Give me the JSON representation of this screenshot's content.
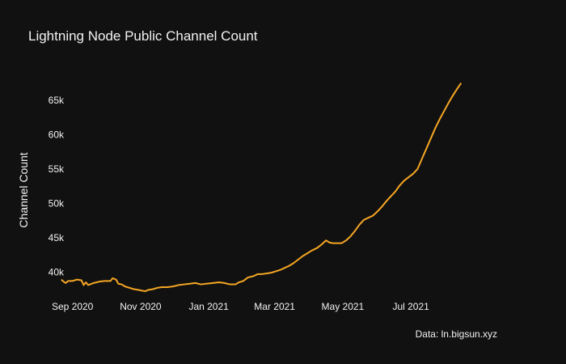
{
  "chart_data": {
    "type": "line",
    "title": "Lightning Node Public Channel Count",
    "xlabel": "",
    "ylabel": "Channel Count",
    "source": "Data: ln.bigsun.xyz",
    "y_ticks": [
      {
        "value": 40000,
        "label": "40k"
      },
      {
        "value": 45000,
        "label": "45k"
      },
      {
        "value": 50000,
        "label": "50k"
      },
      {
        "value": 55000,
        "label": "55k"
      },
      {
        "value": 60000,
        "label": "60k"
      },
      {
        "value": 65000,
        "label": "65k"
      }
    ],
    "x_ticks": [
      {
        "value": "2020-09-01",
        "label": "Sep 2020"
      },
      {
        "value": "2020-11-01",
        "label": "Nov 2020"
      },
      {
        "value": "2021-01-01",
        "label": "Jan 2021"
      },
      {
        "value": "2021-03-01",
        "label": "Mar 2021"
      },
      {
        "value": "2021-05-01",
        "label": "May 2021"
      },
      {
        "value": "2021-07-01",
        "label": "Jul 2021"
      }
    ],
    "xlim": [
      "2020-08-25",
      "2021-09-20"
    ],
    "ylim": [
      36500,
      69000
    ],
    "grid": false,
    "series": [
      {
        "color": "#f5a623",
        "points": [
          [
            "2020-08-22",
            38900
          ],
          [
            "2020-08-24",
            38600
          ],
          [
            "2020-08-26",
            38400
          ],
          [
            "2020-08-28",
            38700
          ],
          [
            "2020-09-01",
            38700
          ],
          [
            "2020-09-05",
            38900
          ],
          [
            "2020-09-09",
            38800
          ],
          [
            "2020-09-11",
            38100
          ],
          [
            "2020-09-13",
            38500
          ],
          [
            "2020-09-15",
            38100
          ],
          [
            "2020-09-20",
            38400
          ],
          [
            "2020-09-25",
            38600
          ],
          [
            "2020-09-30",
            38700
          ],
          [
            "2020-10-05",
            38700
          ],
          [
            "2020-10-07",
            39100
          ],
          [
            "2020-10-10",
            38900
          ],
          [
            "2020-10-12",
            38300
          ],
          [
            "2020-10-15",
            38200
          ],
          [
            "2020-10-18",
            37900
          ],
          [
            "2020-10-22",
            37700
          ],
          [
            "2020-10-26",
            37500
          ],
          [
            "2020-10-30",
            37400
          ],
          [
            "2020-11-02",
            37300
          ],
          [
            "2020-11-05",
            37200
          ],
          [
            "2020-11-08",
            37400
          ],
          [
            "2020-11-12",
            37500
          ],
          [
            "2020-11-16",
            37700
          ],
          [
            "2020-11-20",
            37800
          ],
          [
            "2020-11-25",
            37800
          ],
          [
            "2020-11-30",
            37900
          ],
          [
            "2020-12-05",
            38100
          ],
          [
            "2020-12-10",
            38200
          ],
          [
            "2020-12-15",
            38300
          ],
          [
            "2020-12-20",
            38400
          ],
          [
            "2020-12-25",
            38200
          ],
          [
            "2020-12-30",
            38300
          ],
          [
            "2021-01-05",
            38400
          ],
          [
            "2021-01-10",
            38500
          ],
          [
            "2021-01-15",
            38400
          ],
          [
            "2021-01-20",
            38200
          ],
          [
            "2021-01-25",
            38200
          ],
          [
            "2021-01-28",
            38500
          ],
          [
            "2021-02-01",
            38700
          ],
          [
            "2021-02-05",
            39200
          ],
          [
            "2021-02-10",
            39400
          ],
          [
            "2021-02-14",
            39700
          ],
          [
            "2021-02-18",
            39700
          ],
          [
            "2021-02-22",
            39800
          ],
          [
            "2021-02-26",
            39900
          ],
          [
            "2021-03-02",
            40100
          ],
          [
            "2021-03-06",
            40300
          ],
          [
            "2021-03-10",
            40600
          ],
          [
            "2021-03-14",
            40900
          ],
          [
            "2021-03-18",
            41300
          ],
          [
            "2021-03-22",
            41800
          ],
          [
            "2021-03-26",
            42300
          ],
          [
            "2021-03-30",
            42700
          ],
          [
            "2021-04-03",
            43100
          ],
          [
            "2021-04-08",
            43500
          ],
          [
            "2021-04-12",
            44000
          ],
          [
            "2021-04-16",
            44600
          ],
          [
            "2021-04-19",
            44300
          ],
          [
            "2021-04-22",
            44200
          ],
          [
            "2021-04-26",
            44200
          ],
          [
            "2021-04-30",
            44200
          ],
          [
            "2021-05-04",
            44600
          ],
          [
            "2021-05-08",
            45200
          ],
          [
            "2021-05-12",
            46000
          ],
          [
            "2021-05-16",
            46900
          ],
          [
            "2021-05-20",
            47600
          ],
          [
            "2021-05-24",
            47900
          ],
          [
            "2021-05-28",
            48200
          ],
          [
            "2021-06-01",
            48800
          ],
          [
            "2021-06-05",
            49500
          ],
          [
            "2021-06-09",
            50300
          ],
          [
            "2021-06-13",
            51000
          ],
          [
            "2021-06-17",
            51700
          ],
          [
            "2021-06-21",
            52600
          ],
          [
            "2021-06-25",
            53300
          ],
          [
            "2021-06-29",
            53800
          ],
          [
            "2021-07-03",
            54300
          ],
          [
            "2021-07-07",
            55000
          ],
          [
            "2021-07-11",
            56500
          ],
          [
            "2021-07-15",
            58000
          ],
          [
            "2021-07-19",
            59500
          ],
          [
            "2021-07-23",
            61000
          ],
          [
            "2021-07-27",
            62300
          ],
          [
            "2021-07-31",
            63500
          ],
          [
            "2021-08-04",
            64700
          ],
          [
            "2021-08-08",
            65800
          ],
          [
            "2021-08-12",
            66800
          ],
          [
            "2021-08-15",
            67500
          ]
        ]
      }
    ]
  }
}
